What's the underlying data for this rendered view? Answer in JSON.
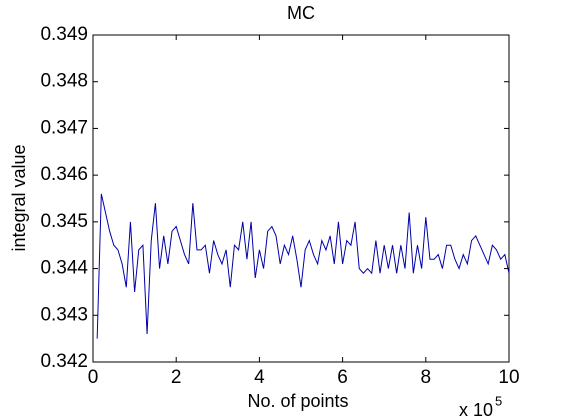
{
  "chart_data": {
    "type": "line",
    "title": "MC",
    "x_label": "No. of points",
    "y_label": "integral value",
    "x_multiplier": {
      "base": "x 10",
      "exponent": "5"
    },
    "xlim": [
      0,
      10
    ],
    "xticks": [
      0,
      2,
      4,
      6,
      8,
      10
    ],
    "ylim": [
      0.342,
      0.349
    ],
    "yticks": [
      0.342,
      0.343,
      0.344,
      0.345,
      0.346,
      0.347,
      0.348,
      0.349
    ],
    "grid": false,
    "series": [
      {
        "name": "MC",
        "color": "#0000aa",
        "x": [
          0.1,
          0.2,
          0.3,
          0.4,
          0.5,
          0.6,
          0.7,
          0.8,
          0.9,
          1.0,
          1.1,
          1.2,
          1.3,
          1.4,
          1.5,
          1.6,
          1.7,
          1.8,
          1.9,
          2.0,
          2.1,
          2.2,
          2.3,
          2.4,
          2.5,
          2.6,
          2.7,
          2.8,
          2.9,
          3.0,
          3.1,
          3.2,
          3.3,
          3.4,
          3.5,
          3.6,
          3.7,
          3.8,
          3.9,
          4.0,
          4.1,
          4.2,
          4.3,
          4.4,
          4.5,
          4.6,
          4.7,
          4.8,
          4.9,
          5.0,
          5.1,
          5.2,
          5.3,
          5.4,
          5.5,
          5.6,
          5.7,
          5.8,
          5.9,
          6.0,
          6.1,
          6.2,
          6.3,
          6.4,
          6.5,
          6.6,
          6.7,
          6.8,
          6.9,
          7.0,
          7.1,
          7.2,
          7.3,
          7.4,
          7.5,
          7.6,
          7.7,
          7.8,
          7.9,
          8.0,
          8.1,
          8.2,
          8.3,
          8.4,
          8.5,
          8.6,
          8.7,
          8.8,
          8.9,
          9.0,
          9.1,
          9.2,
          9.3,
          9.4,
          9.5,
          9.6,
          9.7,
          9.8,
          9.9,
          10.0
        ],
        "values": [
          0.3425,
          0.3456,
          0.3452,
          0.3448,
          0.3445,
          0.3444,
          0.3441,
          0.3436,
          0.345,
          0.3435,
          0.3444,
          0.3445,
          0.3426,
          0.3446,
          0.3454,
          0.344,
          0.3447,
          0.3441,
          0.3448,
          0.3449,
          0.3446,
          0.3443,
          0.3441,
          0.3454,
          0.3444,
          0.3444,
          0.3445,
          0.3439,
          0.3446,
          0.3443,
          0.3441,
          0.3444,
          0.3436,
          0.3445,
          0.3444,
          0.345,
          0.3442,
          0.345,
          0.3438,
          0.3444,
          0.344,
          0.3448,
          0.3449,
          0.3447,
          0.3441,
          0.3445,
          0.3443,
          0.3447,
          0.3442,
          0.3436,
          0.3444,
          0.3446,
          0.3443,
          0.3441,
          0.3446,
          0.3444,
          0.3447,
          0.3441,
          0.345,
          0.3441,
          0.3446,
          0.3445,
          0.345,
          0.344,
          0.3439,
          0.344,
          0.3439,
          0.3446,
          0.3439,
          0.3445,
          0.344,
          0.3445,
          0.3439,
          0.3445,
          0.344,
          0.3452,
          0.3439,
          0.3445,
          0.344,
          0.3451,
          0.3442,
          0.3442,
          0.3443,
          0.344,
          0.3445,
          0.3445,
          0.3442,
          0.344,
          0.3443,
          0.3441,
          0.3446,
          0.3447,
          0.3445,
          0.3443,
          0.3441,
          0.3445,
          0.3444,
          0.3442,
          0.3443,
          0.3439
        ]
      }
    ]
  }
}
